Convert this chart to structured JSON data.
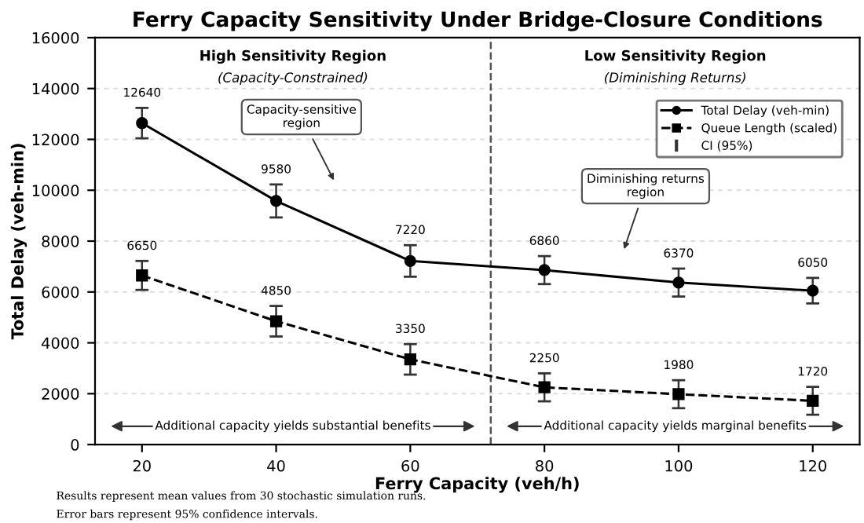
{
  "chart_data": {
    "type": "line",
    "title": "Ferry Capacity Sensitivity Under Bridge-Closure Conditions",
    "xlabel": "Ferry Capacity (veh/h)",
    "ylabel": "Total Delay (veh-min)",
    "x": [
      20,
      40,
      60,
      80,
      100,
      120
    ],
    "series": [
      {
        "name": "Total Delay (veh-min)",
        "color": "#000000",
        "values": [
          12640,
          9580,
          7220,
          6860,
          6370,
          6050
        ],
        "errors": [
          600,
          650,
          620,
          550,
          550,
          500
        ],
        "marker": "circle",
        "line_style": "solid"
      },
      {
        "name": "Queue Length (scaled)",
        "color": "#000000",
        "values": [
          6650,
          4850,
          3350,
          2250,
          1980,
          1720
        ],
        "errors": [
          570,
          600,
          600,
          550,
          550,
          550
        ],
        "marker": "square",
        "line_style": "dashed"
      }
    ],
    "data_labels": true,
    "xlim": [
      13,
      127
    ],
    "ylim": [
      0,
      16000
    ],
    "xticks": [
      20,
      40,
      60,
      80,
      100,
      120
    ],
    "yticks": [
      0,
      2000,
      4000,
      6000,
      8000,
      10000,
      12000,
      14000,
      16000
    ],
    "ref_lines": [
      {
        "axis": "x",
        "value": 72,
        "color": "#555555",
        "line_style": "dashed"
      }
    ],
    "grid": "y",
    "legend": "top right",
    "annotations": [
      "High Sensitivity Region",
      "(Capacity-Constrained)",
      "Low Sensitivity Region",
      "(Diminishing Returns)",
      "Capacity-sensitive\nregion",
      "Diminishing returns\nregion",
      "Additional capacity yields substantial benefits",
      "Additional capacity yields marginal benefits",
      "CI (95%)",
      "Results represent mean values from 30 stochastic simulation runs.",
      "Error bars represent 95% confidence intervals."
    ]
  }
}
